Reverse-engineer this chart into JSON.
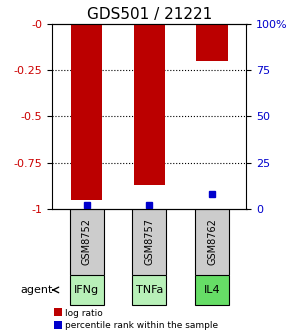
{
  "title": "GDS501 / 21221",
  "samples": [
    "GSM8752",
    "GSM8757",
    "GSM8762"
  ],
  "agents": [
    "IFNg",
    "TNFa",
    "IL4"
  ],
  "log_ratios": [
    -0.95,
    -0.87,
    -0.2
  ],
  "percentile_ranks": [
    2,
    2,
    8
  ],
  "ylim_left": [
    -1.0,
    0.0
  ],
  "yticks_left": [
    0.0,
    -0.25,
    -0.5,
    -0.75,
    -1.0
  ],
  "ytick_labels_left": [
    "-0",
    "-0.25",
    "-0.5",
    "-0.75",
    "-1"
  ],
  "yticks_right": [
    0,
    25,
    50,
    75,
    100
  ],
  "ytick_labels_right": [
    "0",
    "25",
    "50",
    "75",
    "100%"
  ],
  "bar_color": "#bb0000",
  "percentile_color": "#0000cc",
  "agent_colors": [
    "#b8f0b8",
    "#b8f0b8",
    "#66dd66"
  ],
  "sample_bg_color": "#cccccc",
  "title_fontsize": 11,
  "axis_label_color_left": "#cc0000",
  "axis_label_color_right": "#0000cc",
  "grid_yticks": [
    -0.25,
    -0.5,
    -0.75
  ],
  "bar_width": 0.5
}
